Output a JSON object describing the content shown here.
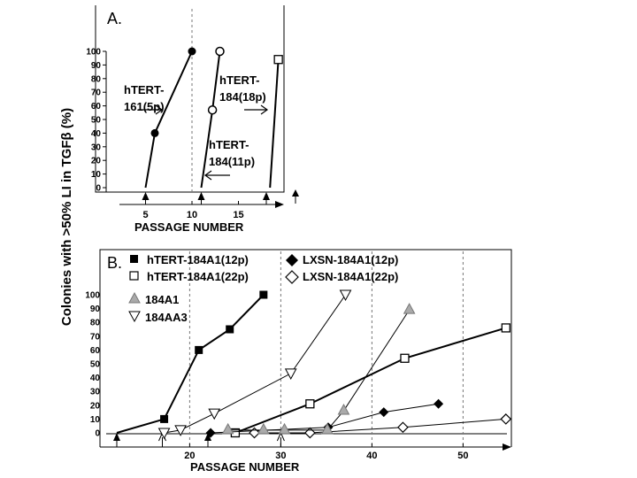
{
  "figure": {
    "shared_ylabel": "Colonies with >50% LI in TGFβ (%)"
  },
  "chart_data": [
    {
      "panel": "A.",
      "type": "line",
      "xlabel": "PASSAGE NUMBER",
      "xlim": [
        0,
        21
      ],
      "ylim": [
        0,
        100
      ],
      "x_ticks": [
        5,
        10,
        15
      ],
      "y_ticks": [
        0,
        10,
        20,
        30,
        40,
        50,
        60,
        70,
        80,
        90,
        100
      ],
      "dashed_vlines": [
        10
      ],
      "axis_arrows": [
        5,
        11,
        18
      ],
      "series": [
        {
          "name": "hTERT-161(5p)",
          "marker": "filled-circle",
          "points": [
            [
              5,
              0
            ],
            [
              6,
              40
            ],
            [
              10,
              100
            ]
          ]
        },
        {
          "name": "hTERT-184(11p)",
          "marker": "open-circle",
          "points": [
            [
              11,
              0
            ],
            [
              12.2,
              57
            ],
            [
              13,
              100
            ]
          ]
        },
        {
          "name": "hTERT-184(18p)",
          "marker": "open-square",
          "points": [
            [
              18.4,
              0
            ],
            [
              19.3,
              94
            ]
          ]
        }
      ],
      "annotations": [
        {
          "text": [
            "hTERT-",
            "161(5p)"
          ],
          "arrow": "right"
        },
        {
          "text": [
            "hTERT-",
            "184(18p)"
          ],
          "arrow": "right"
        },
        {
          "text": [
            "hTERT-",
            "184(11p)"
          ],
          "arrow": "left"
        }
      ]
    },
    {
      "panel": "B.",
      "type": "line",
      "xlabel": "PASSAGE NUMBER",
      "xlim": [
        10,
        55
      ],
      "ylim": [
        0,
        100
      ],
      "x_ticks": [
        20,
        30,
        40,
        50
      ],
      "y_ticks": [
        0,
        10,
        20,
        30,
        40,
        50,
        60,
        70,
        80,
        90,
        100
      ],
      "dashed_vlines": [
        20,
        30,
        40,
        50
      ],
      "axis_arrows": [
        {
          "x": 12,
          "style": "filled"
        },
        {
          "x": 17,
          "style": "open"
        },
        {
          "x": 22,
          "style": "filled"
        },
        {
          "x": 30,
          "style": "open"
        }
      ],
      "series": [
        {
          "name": "hTERT-184A1(12p)",
          "marker": "filled-square",
          "line": "bold",
          "points": [
            [
              12,
              0
            ],
            [
              17.2,
              10
            ],
            [
              21,
              60
            ],
            [
              24.4,
              75
            ],
            [
              28.1,
              100
            ]
          ]
        },
        {
          "name": "hTERT-184A1(22p)",
          "marker": "open-square",
          "line": "bold",
          "points": [
            [
              25,
              0
            ],
            [
              33.2,
              21
            ],
            [
              43.6,
              54
            ],
            [
              54.7,
              76
            ]
          ]
        },
        {
          "name": "LXSN-184A1(12p)",
          "marker": "filled-diamond",
          "line": "thin",
          "points": [
            [
              22.3,
              0
            ],
            [
              35.2,
              4
            ],
            [
              41.3,
              15
            ],
            [
              47.3,
              21
            ]
          ]
        },
        {
          "name": "LXSN-184A1(22p)",
          "marker": "open-diamond",
          "line": "thin",
          "points": [
            [
              27.1,
              0
            ],
            [
              33.2,
              0
            ],
            [
              43.4,
              4
            ],
            [
              54.7,
              10
            ]
          ]
        },
        {
          "name": "184A1",
          "marker": "gray-triangle",
          "line": "thin",
          "points": [
            [
              24.2,
              2
            ],
            [
              28.1,
              2
            ],
            [
              30.4,
              2
            ],
            [
              35.1,
              2
            ],
            [
              36.9,
              16
            ],
            [
              44.1,
              89
            ]
          ]
        },
        {
          "name": "184AA3",
          "marker": "open-triangle-down",
          "line": "thin",
          "points": [
            [
              17.2,
              0
            ],
            [
              19,
              2
            ],
            [
              22.7,
              14
            ],
            [
              31.1,
              43
            ],
            [
              37.1,
              100
            ]
          ]
        }
      ]
    }
  ]
}
